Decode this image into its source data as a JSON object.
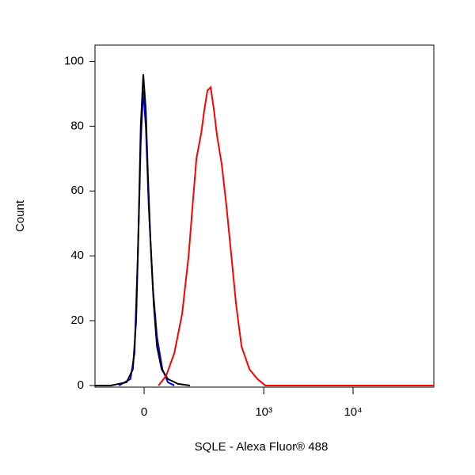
{
  "chart_data": {
    "type": "line",
    "x_label": "SQLE - Alexa Fluor® 488",
    "y_label": "Count",
    "xscale": "asinh",
    "xlim": [
      -150,
      80000
    ],
    "ylim": [
      -0.5,
      105
    ],
    "xticks": [
      0,
      {
        "value": 1000,
        "label": "10³"
      },
      {
        "value": 10000,
        "label": "10⁴"
      }
    ],
    "yticks": [
      0,
      20,
      40,
      60,
      80,
      100
    ],
    "series": [
      {
        "color": "#0000ff",
        "x": [
          -64,
          -33,
          -23,
          -15,
          -8,
          -2,
          4,
          11,
          21,
          31,
          45,
          60,
          79
        ],
        "values": [
          0,
          2,
          10,
          40,
          75,
          91,
          80,
          55,
          30,
          15,
          5,
          1,
          0
        ]
      },
      {
        "color": "#000000",
        "x": [
          -150,
          -89,
          -43,
          -27,
          -19,
          -13,
          -8,
          -2,
          4,
          9,
          15,
          23,
          31,
          43,
          60,
          91,
          136
        ],
        "values": [
          0,
          0,
          1,
          5,
          20,
          50,
          80,
          96,
          85,
          65,
          45,
          25,
          12,
          5,
          2,
          0.5,
          0
        ]
      },
      {
        "color": "#ff0000",
        "x": [
          35,
          55,
          79,
          105,
          130,
          150,
          165,
          190,
          207,
          226,
          247,
          270,
          294,
          334,
          379,
          430,
          487,
          562,
          691,
          849,
          1042,
          2000,
          80000
        ],
        "values": [
          0,
          3,
          10,
          22,
          40,
          58,
          70,
          78,
          85,
          91,
          92,
          85,
          77,
          68,
          55,
          40,
          25,
          12,
          5,
          2,
          0,
          0,
          0
        ]
      }
    ]
  }
}
